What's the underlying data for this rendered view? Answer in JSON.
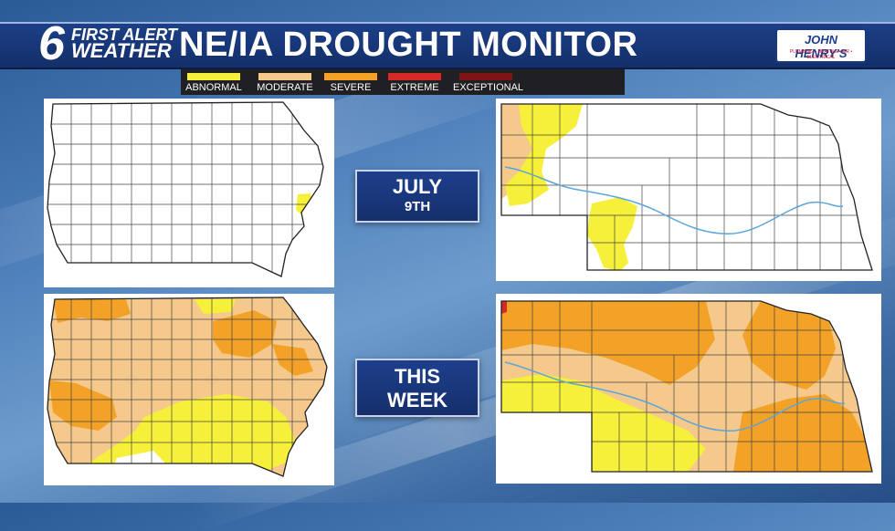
{
  "header": {
    "logo_number": "6",
    "logo_line1": "FIRST ALERT",
    "logo_line2": "WEATHER",
    "title": "NE/IA DROUGHT MONITOR",
    "sponsor_name": "JOHN HENRY'S",
    "sponsor_tagline": "PLUMBING • HEATING • AIR • ELECTRICAL"
  },
  "legend": [
    {
      "label": "ABNORMAL",
      "color": "#f6f03a"
    },
    {
      "label": "MODERATE",
      "color": "#f5c98c"
    },
    {
      "label": "SEVERE",
      "color": "#f3a227"
    },
    {
      "label": "EXTREME",
      "color": "#d62a28"
    },
    {
      "label": "EXCEPTIONAL",
      "color": "#7c1418"
    }
  ],
  "labels": {
    "past_line1": "JULY",
    "past_line2": "9TH",
    "current_line1": "THIS",
    "current_line2": "WEEK"
  },
  "maps": {
    "iowa_past": {
      "state": "Iowa",
      "period": "July 9th"
    },
    "nebraska_past": {
      "state": "Nebraska",
      "period": "July 9th"
    },
    "iowa_current": {
      "state": "Iowa",
      "period": "This Week"
    },
    "nebraska_current": {
      "state": "Nebraska",
      "period": "This Week"
    }
  }
}
